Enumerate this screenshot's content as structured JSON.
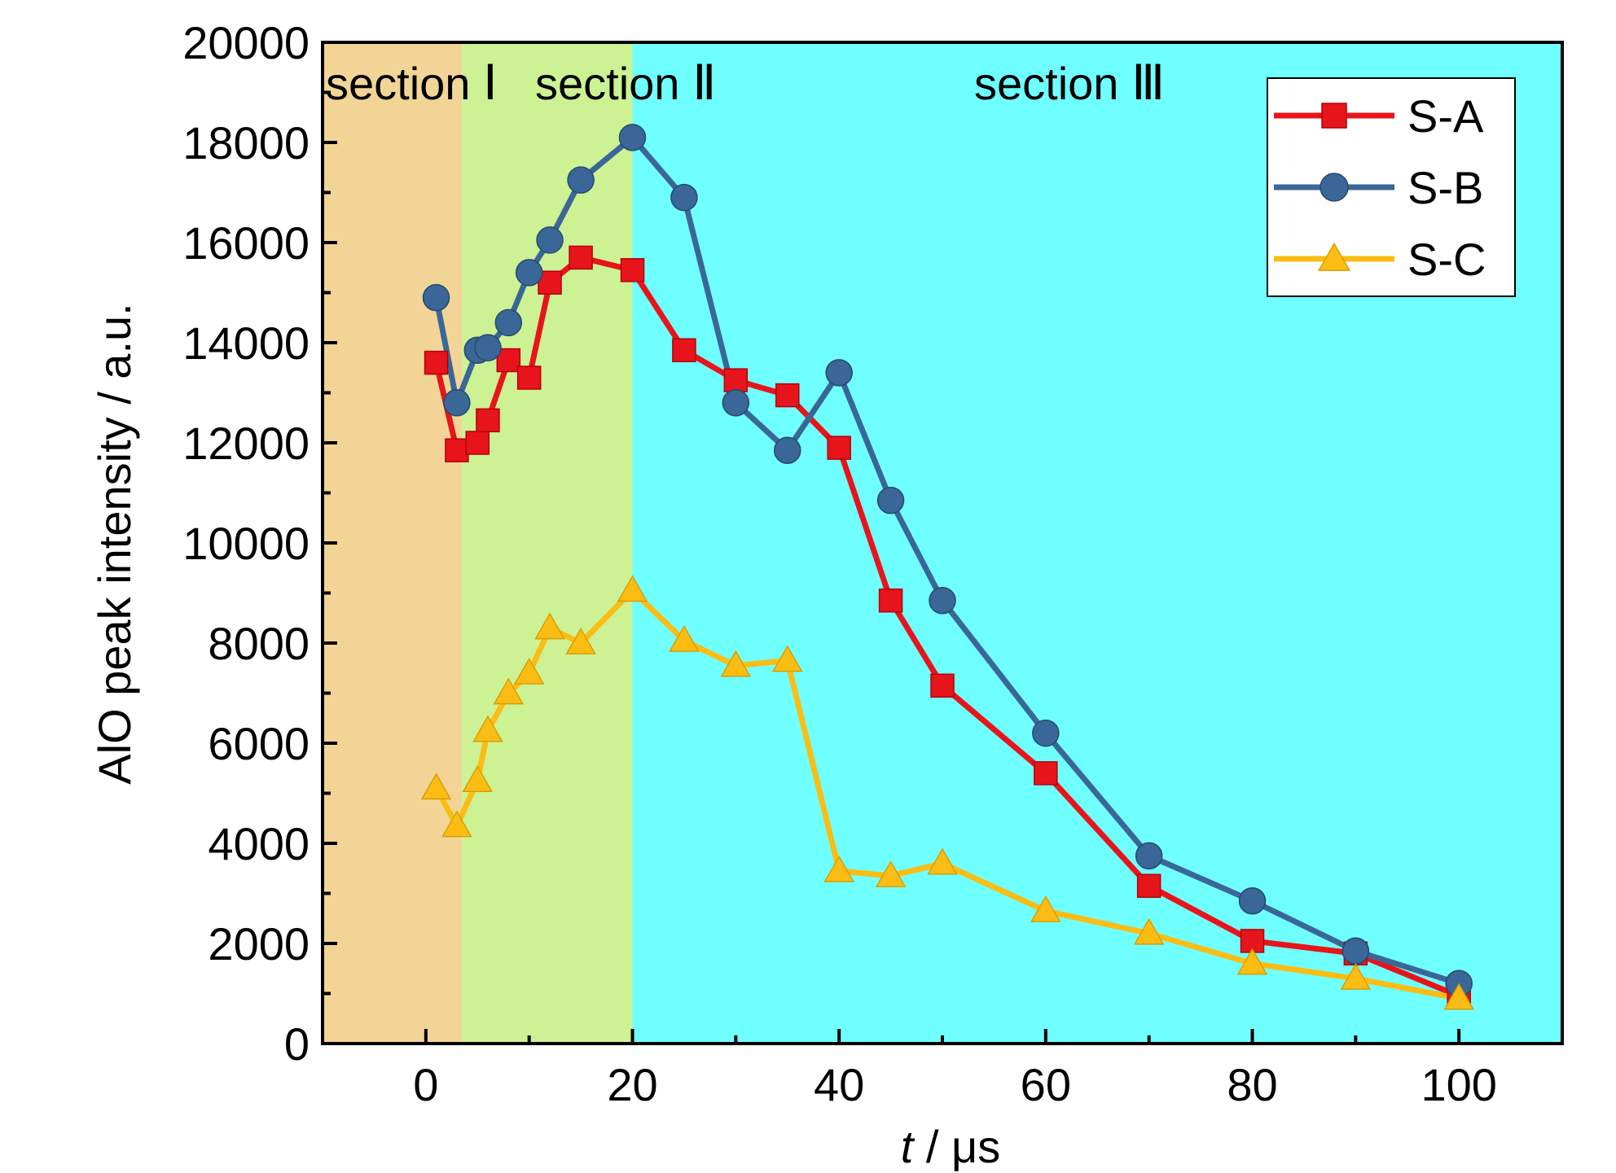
{
  "chart_data": {
    "type": "line",
    "xlabel_italic": "t",
    "xlabel_rest": " / μs",
    "ylabel": "AlO peak intensity / a.u.",
    "xlim": [
      -10,
      110
    ],
    "ylim": [
      0,
      20000
    ],
    "x_ticks": [
      0,
      20,
      40,
      60,
      80,
      100
    ],
    "y_ticks": [
      0,
      2000,
      4000,
      6000,
      8000,
      10000,
      12000,
      14000,
      16000,
      18000,
      20000
    ],
    "regions": [
      {
        "label": "section",
        "numeral": "Ⅰ",
        "x_start": -10,
        "x_end": 3.5,
        "color": "#f2d596"
      },
      {
        "label": "section",
        "numeral": "Ⅱ",
        "x_start": 3.5,
        "x_end": 20,
        "color": "#ccf294"
      },
      {
        "label": "section",
        "numeral": "Ⅲ",
        "x_start": 20,
        "x_end": 110,
        "color": "#70ffff"
      }
    ],
    "legend_position": "top-right",
    "series": [
      {
        "name": "S-A",
        "color": "#e8141b",
        "marker": "square",
        "x": [
          1,
          3,
          5,
          6,
          8,
          10,
          12,
          15,
          20,
          25,
          30,
          35,
          40,
          45,
          50,
          60,
          70,
          80,
          90,
          100
        ],
        "values": [
          13600,
          11850,
          12000,
          12450,
          13650,
          13300,
          15200,
          15700,
          15450,
          13850,
          13250,
          12950,
          11900,
          8850,
          7150,
          5400,
          3150,
          2050,
          1800,
          950
        ]
      },
      {
        "name": "S-B",
        "color": "#3a6797",
        "marker": "circle",
        "x": [
          1,
          3,
          5,
          6,
          8,
          10,
          12,
          15,
          20,
          25,
          30,
          35,
          40,
          45,
          50,
          60,
          70,
          80,
          90,
          100
        ],
        "values": [
          14900,
          12800,
          13850,
          13900,
          14400,
          15400,
          16050,
          17250,
          18100,
          16900,
          12800,
          11850,
          13400,
          10850,
          8850,
          6200,
          3750,
          2850,
          1850,
          1200
        ]
      },
      {
        "name": "S-C",
        "color": "#fbbd14",
        "marker": "triangle",
        "x": [
          1,
          3,
          5,
          6,
          8,
          10,
          12,
          15,
          20,
          25,
          30,
          35,
          40,
          45,
          50,
          60,
          70,
          80,
          90,
          100
        ],
        "values": [
          5100,
          4350,
          5250,
          6250,
          7000,
          7400,
          8300,
          8000,
          9050,
          8050,
          7550,
          7650,
          3450,
          3350,
          3600,
          2650,
          2200,
          1600,
          1300,
          900
        ]
      }
    ]
  }
}
